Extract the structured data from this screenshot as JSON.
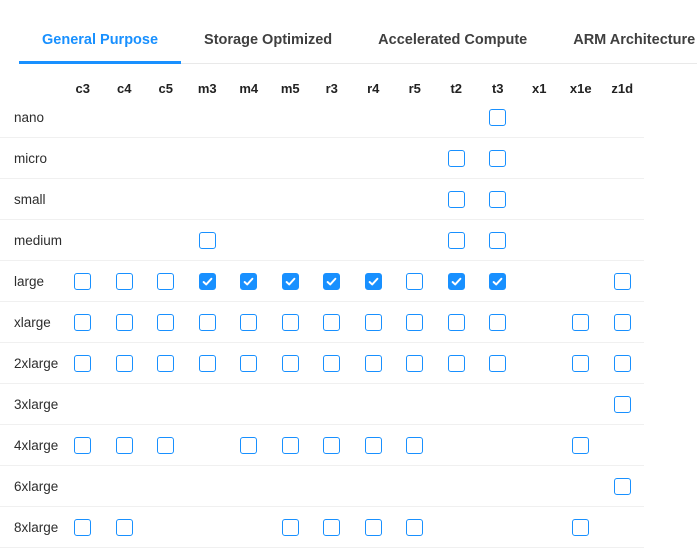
{
  "tabs": {
    "items": [
      {
        "label": "General Purpose",
        "active": true
      },
      {
        "label": "Storage Optimized",
        "active": false
      },
      {
        "label": "Accelerated Compute",
        "active": false
      },
      {
        "label": "ARM Architecture",
        "active": false
      }
    ]
  },
  "table": {
    "columns": [
      "c3",
      "c4",
      "c5",
      "m3",
      "m4",
      "m5",
      "r3",
      "r4",
      "r5",
      "t2",
      "t3",
      "x1",
      "x1e",
      "z1d"
    ],
    "rows": [
      {
        "label": "nano",
        "cells": {
          "t3": "unchecked"
        }
      },
      {
        "label": "micro",
        "cells": {
          "t2": "unchecked",
          "t3": "unchecked"
        }
      },
      {
        "label": "small",
        "cells": {
          "t2": "unchecked",
          "t3": "unchecked"
        }
      },
      {
        "label": "medium",
        "cells": {
          "m3": "unchecked",
          "t2": "unchecked",
          "t3": "unchecked"
        }
      },
      {
        "label": "large",
        "cells": {
          "c3": "unchecked",
          "c4": "unchecked",
          "c5": "unchecked",
          "m3": "checked",
          "m4": "checked",
          "m5": "checked",
          "r3": "checked",
          "r4": "checked",
          "r5": "unchecked",
          "t2": "checked",
          "t3": "checked",
          "z1d": "unchecked"
        }
      },
      {
        "label": "xlarge",
        "cells": {
          "c3": "unchecked",
          "c4": "unchecked",
          "c5": "unchecked",
          "m3": "unchecked",
          "m4": "unchecked",
          "m5": "unchecked",
          "r3": "unchecked",
          "r4": "unchecked",
          "r5": "unchecked",
          "t2": "unchecked",
          "t3": "unchecked",
          "x1e": "unchecked",
          "z1d": "unchecked"
        }
      },
      {
        "label": "2xlarge",
        "cells": {
          "c3": "unchecked",
          "c4": "unchecked",
          "c5": "unchecked",
          "m3": "unchecked",
          "m4": "unchecked",
          "m5": "unchecked",
          "r3": "unchecked",
          "r4": "unchecked",
          "r5": "unchecked",
          "t2": "unchecked",
          "t3": "unchecked",
          "x1e": "unchecked",
          "z1d": "unchecked"
        }
      },
      {
        "label": "3xlarge",
        "cells": {
          "z1d": "unchecked"
        }
      },
      {
        "label": "4xlarge",
        "cells": {
          "c3": "unchecked",
          "c4": "unchecked",
          "c5": "unchecked",
          "m4": "unchecked",
          "m5": "unchecked",
          "r3": "unchecked",
          "r4": "unchecked",
          "r5": "unchecked",
          "x1e": "unchecked"
        }
      },
      {
        "label": "6xlarge",
        "cells": {
          "z1d": "unchecked"
        }
      },
      {
        "label": "8xlarge",
        "cells": {
          "c3": "unchecked",
          "c4": "unchecked",
          "m5": "unchecked",
          "r3": "unchecked",
          "r4": "unchecked",
          "r5": "unchecked",
          "x1e": "unchecked"
        }
      }
    ]
  },
  "colors": {
    "accent": "#1890ff",
    "checked_fill": "#1890ff",
    "checkbox_border": "#1890ff",
    "tab_inactive_text": "#3f3f3f",
    "row_separator": "#f0f0f0",
    "tabbar_border": "#e9e9e9"
  }
}
